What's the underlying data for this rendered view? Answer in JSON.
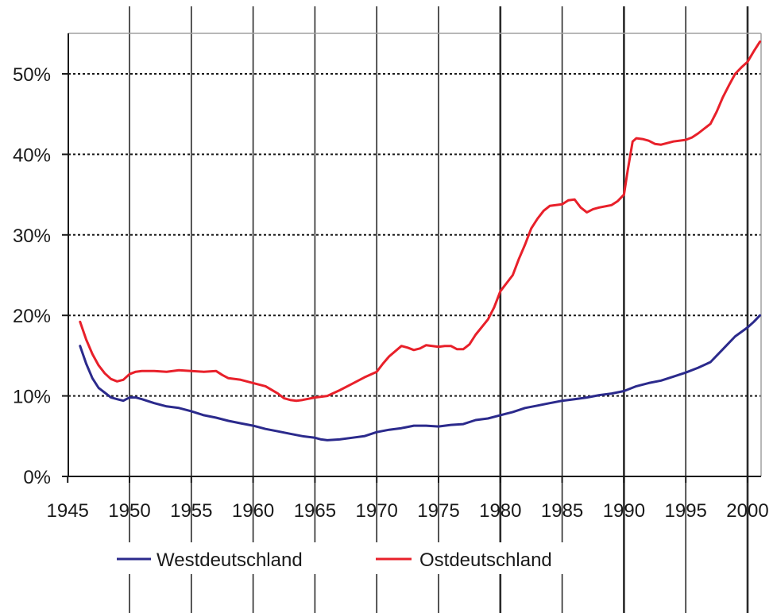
{
  "chart_data": {
    "type": "line",
    "title": "",
    "xlabel": "",
    "ylabel": "",
    "xlim": [
      1946,
      2001
    ],
    "ylim": [
      0,
      55
    ],
    "x_ticks": [
      1945,
      1950,
      1955,
      1960,
      1965,
      1970,
      1975,
      1980,
      1985,
      1990,
      1995,
      2000
    ],
    "x_tick_labels": [
      "1945",
      "1950",
      "1955",
      "1960",
      "1965",
      "1970",
      "1975",
      "1980",
      "1985",
      "1990",
      "1995",
      "2000"
    ],
    "y_ticks": [
      0,
      10,
      20,
      30,
      40,
      50
    ],
    "y_tick_labels": [
      "0%",
      "10%",
      "20%",
      "30%",
      "40%",
      "50%"
    ],
    "grid": {
      "y": "dotted",
      "x": "solid-vertical-lines"
    },
    "legend": {
      "position": "bottom"
    },
    "series": [
      {
        "name": "Westdeutschland",
        "color": "#2b2a8c",
        "points": [
          [
            1946,
            16.2
          ],
          [
            1946.5,
            14.0
          ],
          [
            1947,
            12.2
          ],
          [
            1947.5,
            11.0
          ],
          [
            1948,
            10.4
          ],
          [
            1948.5,
            9.8
          ],
          [
            1949,
            9.6
          ],
          [
            1949.5,
            9.4
          ],
          [
            1950,
            9.8
          ],
          [
            1950.5,
            9.8
          ],
          [
            1951,
            9.6
          ],
          [
            1952,
            9.1
          ],
          [
            1953,
            8.7
          ],
          [
            1954,
            8.5
          ],
          [
            1955,
            8.1
          ],
          [
            1956,
            7.6
          ],
          [
            1957,
            7.3
          ],
          [
            1958,
            6.9
          ],
          [
            1959,
            6.6
          ],
          [
            1960,
            6.3
          ],
          [
            1961,
            5.9
          ],
          [
            1962,
            5.6
          ],
          [
            1963,
            5.3
          ],
          [
            1964,
            5.0
          ],
          [
            1965,
            4.8
          ],
          [
            1965.5,
            4.6
          ],
          [
            1966,
            4.5
          ],
          [
            1967,
            4.6
          ],
          [
            1968,
            4.8
          ],
          [
            1969,
            5.0
          ],
          [
            1970,
            5.5
          ],
          [
            1971,
            5.8
          ],
          [
            1972,
            6.0
          ],
          [
            1973,
            6.3
          ],
          [
            1974,
            6.3
          ],
          [
            1975,
            6.2
          ],
          [
            1976,
            6.4
          ],
          [
            1977,
            6.5
          ],
          [
            1978,
            7.0
          ],
          [
            1979,
            7.2
          ],
          [
            1980,
            7.6
          ],
          [
            1981,
            8.0
          ],
          [
            1982,
            8.5
          ],
          [
            1983,
            8.8
          ],
          [
            1984,
            9.1
          ],
          [
            1985,
            9.4
          ],
          [
            1986,
            9.6
          ],
          [
            1987,
            9.8
          ],
          [
            1988,
            10.1
          ],
          [
            1989,
            10.3
          ],
          [
            1990,
            10.6
          ],
          [
            1991,
            11.2
          ],
          [
            1992,
            11.6
          ],
          [
            1993,
            11.9
          ],
          [
            1994,
            12.4
          ],
          [
            1995,
            12.9
          ],
          [
            1996,
            13.5
          ],
          [
            1997,
            14.2
          ],
          [
            1998,
            15.8
          ],
          [
            1999,
            17.4
          ],
          [
            2000,
            18.5
          ],
          [
            2000.5,
            19.2
          ],
          [
            2001,
            20.0
          ]
        ]
      },
      {
        "name": "Ostdeutschland",
        "color": "#e8202a",
        "points": [
          [
            1946,
            19.2
          ],
          [
            1946.5,
            17.0
          ],
          [
            1947,
            15.2
          ],
          [
            1947.5,
            13.8
          ],
          [
            1948,
            12.8
          ],
          [
            1948.5,
            12.1
          ],
          [
            1949,
            11.8
          ],
          [
            1949.5,
            12.0
          ],
          [
            1950,
            12.7
          ],
          [
            1950.5,
            13.0
          ],
          [
            1951,
            13.1
          ],
          [
            1952,
            13.1
          ],
          [
            1953,
            13.0
          ],
          [
            1954,
            13.2
          ],
          [
            1955,
            13.1
          ],
          [
            1956,
            13.0
          ],
          [
            1957,
            13.1
          ],
          [
            1957.5,
            12.6
          ],
          [
            1958,
            12.2
          ],
          [
            1959,
            12.0
          ],
          [
            1960,
            11.6
          ],
          [
            1961,
            11.2
          ],
          [
            1962,
            10.3
          ],
          [
            1962.5,
            9.7
          ],
          [
            1963,
            9.5
          ],
          [
            1963.5,
            9.4
          ],
          [
            1964,
            9.5
          ],
          [
            1965,
            9.8
          ],
          [
            1966,
            10.0
          ],
          [
            1967,
            10.7
          ],
          [
            1968,
            11.5
          ],
          [
            1969,
            12.3
          ],
          [
            1970,
            13.0
          ],
          [
            1970.5,
            14.0
          ],
          [
            1971,
            14.9
          ],
          [
            1972,
            16.2
          ],
          [
            1972.5,
            16.0
          ],
          [
            1973,
            15.7
          ],
          [
            1973.5,
            15.9
          ],
          [
            1974,
            16.3
          ],
          [
            1974.5,
            16.2
          ],
          [
            1975,
            16.1
          ],
          [
            1975.5,
            16.2
          ],
          [
            1976,
            16.2
          ],
          [
            1976.5,
            15.8
          ],
          [
            1977,
            15.8
          ],
          [
            1977.5,
            16.4
          ],
          [
            1978,
            17.6
          ],
          [
            1979,
            19.5
          ],
          [
            1979.5,
            21.0
          ],
          [
            1980,
            23.0
          ],
          [
            1981,
            25.0
          ],
          [
            1981.5,
            27.0
          ],
          [
            1982,
            28.8
          ],
          [
            1982.5,
            30.8
          ],
          [
            1983,
            32.0
          ],
          [
            1983.5,
            33.0
          ],
          [
            1984,
            33.6
          ],
          [
            1985,
            33.8
          ],
          [
            1985.5,
            34.3
          ],
          [
            1986,
            34.4
          ],
          [
            1986.5,
            33.4
          ],
          [
            1987,
            32.8
          ],
          [
            1987.5,
            33.2
          ],
          [
            1988,
            33.4
          ],
          [
            1989,
            33.7
          ],
          [
            1989.5,
            34.2
          ],
          [
            1990,
            35.0
          ],
          [
            1990.3,
            38.0
          ],
          [
            1990.7,
            41.6
          ],
          [
            1991,
            42.0
          ],
          [
            1991.5,
            41.9
          ],
          [
            1992,
            41.7
          ],
          [
            1992.5,
            41.3
          ],
          [
            1993,
            41.2
          ],
          [
            1994,
            41.6
          ],
          [
            1995,
            41.8
          ],
          [
            1995.5,
            42.1
          ],
          [
            1996,
            42.6
          ],
          [
            1997,
            43.8
          ],
          [
            1997.5,
            45.3
          ],
          [
            1998,
            47.1
          ],
          [
            1998.5,
            48.6
          ],
          [
            1999,
            50.0
          ],
          [
            1999.5,
            50.8
          ],
          [
            2000,
            51.5
          ],
          [
            2000.5,
            52.8
          ],
          [
            2001,
            54.0
          ]
        ]
      }
    ]
  }
}
